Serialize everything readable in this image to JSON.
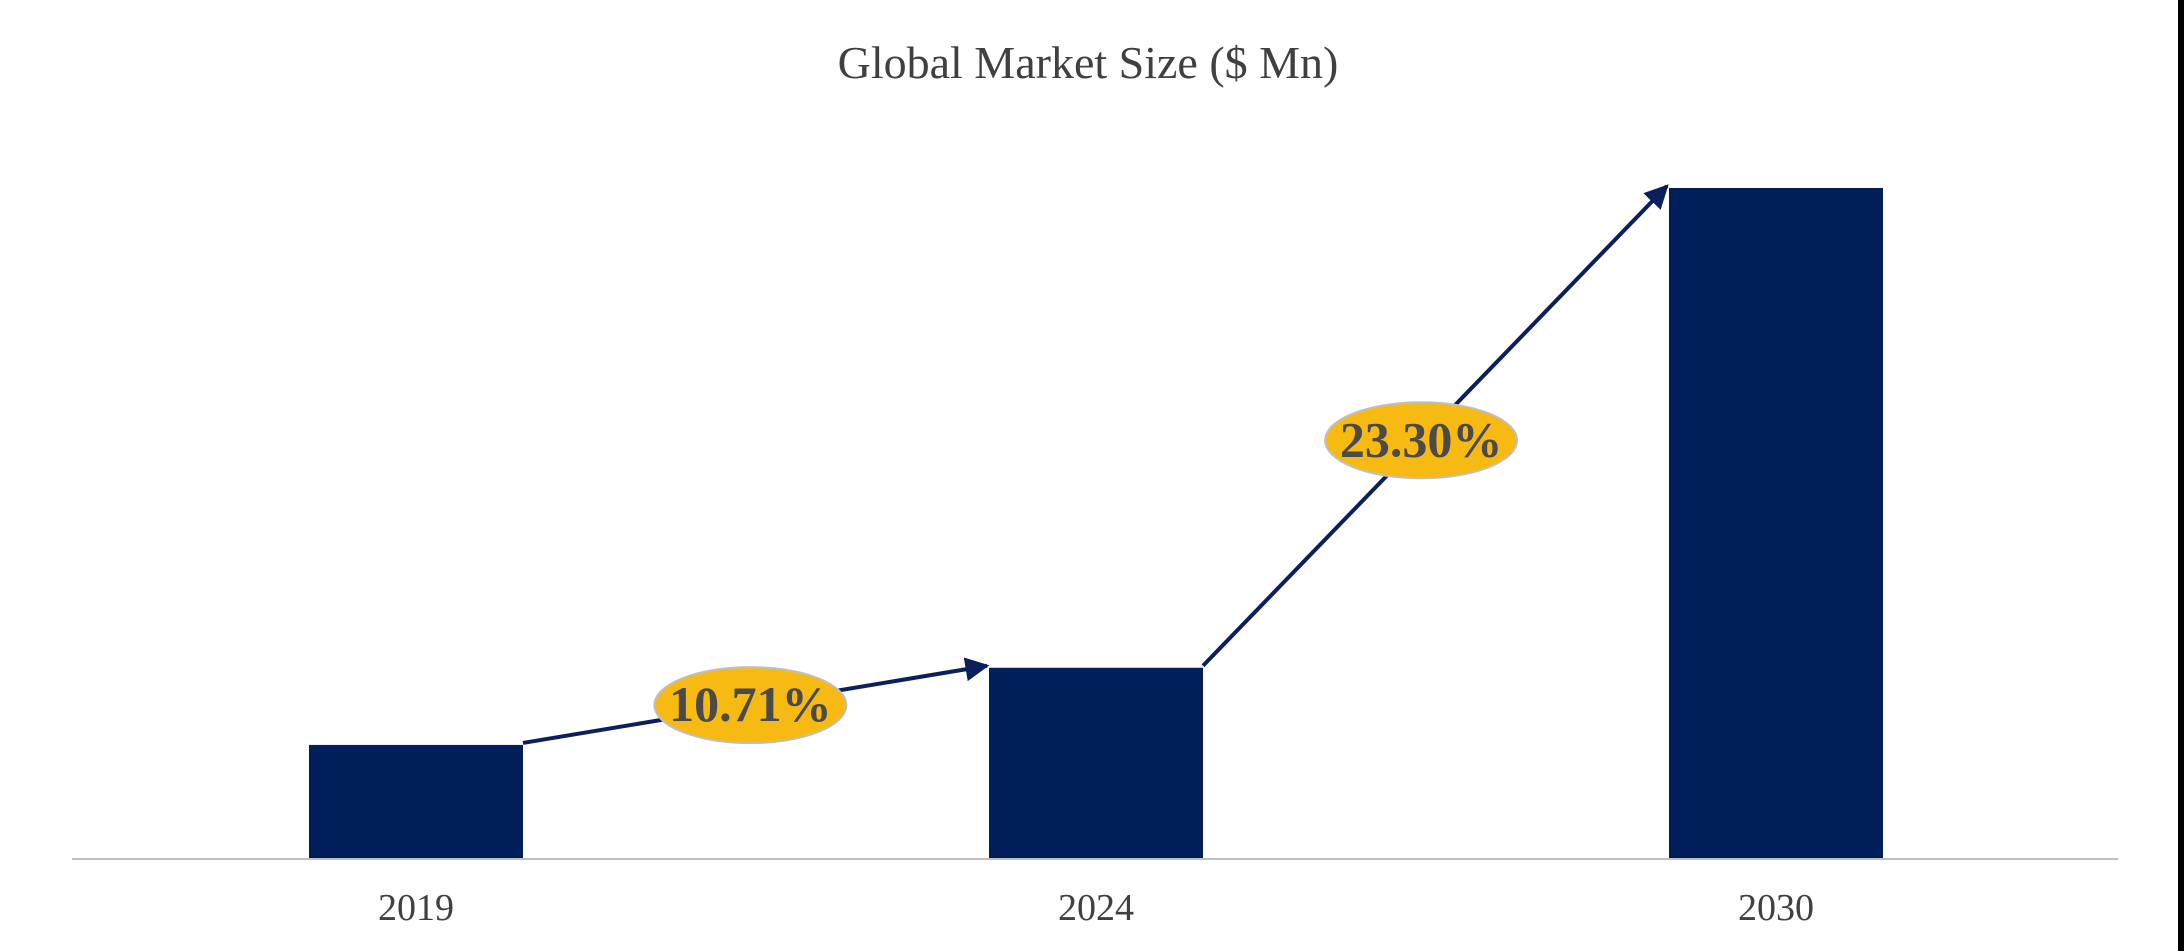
{
  "chart_data": {
    "type": "bar",
    "title": "Global Market Size ($ Mn)",
    "xlabel": "",
    "ylabel": "",
    "categories": [
      "2019",
      "2024",
      "2030"
    ],
    "values": [
      17,
      28.5,
      100
    ],
    "ylim": [
      0,
      100
    ],
    "grid": false,
    "legend": "none",
    "annotations": [
      {
        "label": "10.71%",
        "from": "2019",
        "to": "2024"
      },
      {
        "label": "23.30%",
        "from": "2024",
        "to": "2030"
      }
    ]
  },
  "colors": {
    "bar": "#001E5A",
    "arrow": "#0B1F5C",
    "badge_fill": "#F7BA12",
    "badge_text": "#4A4A4A",
    "badge_stroke": "#BFBFBF",
    "axis": "#BFBFBF",
    "text": "#404040",
    "border": "#000000"
  }
}
